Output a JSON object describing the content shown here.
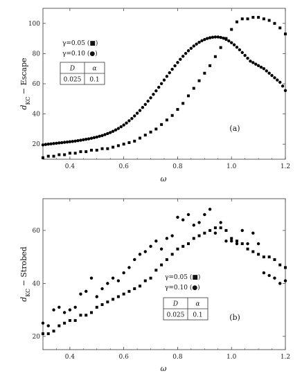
{
  "chart_data": [
    {
      "type": "scatter",
      "panel_label": "(a)",
      "xlabel": "ω",
      "ylabel": "d_KC − Escape",
      "ylabel_main": "d",
      "ylabel_sub": "KC",
      "ylabel_rest": " − Escape",
      "xlim": [
        0.3,
        1.2
      ],
      "ylim": [
        10,
        110
      ],
      "xticks": [
        0.4,
        0.6,
        0.8,
        1.0,
        1.2
      ],
      "xtick_labels": [
        "0.4",
        "0.6",
        "0.8",
        "1.0",
        "1.2"
      ],
      "yticks": [
        20,
        40,
        60,
        80,
        100
      ],
      "ytick_labels": [
        "20",
        "40",
        "60",
        "80",
        "100"
      ],
      "grid": false,
      "legend": [
        {
          "label": "γ=0.05 (■)",
          "marker": "square"
        },
        {
          "label": "γ=0.10 (●)",
          "marker": "circle"
        }
      ],
      "param_table": {
        "headers": [
          "D",
          "α"
        ],
        "values": [
          "0.025",
          "0.1"
        ]
      },
      "series": [
        {
          "marker": "square",
          "x": [
            0.3,
            0.32,
            0.34,
            0.36,
            0.38,
            0.4,
            0.42,
            0.44,
            0.46,
            0.48,
            0.5,
            0.52,
            0.54,
            0.56,
            0.58,
            0.6,
            0.62,
            0.64,
            0.66,
            0.68,
            0.7,
            0.72,
            0.74,
            0.76,
            0.78,
            0.8,
            0.82,
            0.84,
            0.86,
            0.88,
            0.9,
            0.92,
            0.94,
            0.96,
            0.98,
            1.0,
            1.02,
            1.04,
            1.06,
            1.08,
            1.1,
            1.12,
            1.14,
            1.16,
            1.18,
            1.2
          ],
          "y": [
            11,
            12,
            12,
            13,
            13,
            14,
            14,
            15,
            15,
            16,
            16,
            17,
            17,
            18,
            19,
            20,
            21,
            22,
            24,
            26,
            28,
            30,
            33,
            36,
            39,
            43,
            47,
            52,
            57,
            62,
            67,
            72,
            78,
            84,
            90,
            96,
            101,
            103,
            103,
            104,
            104,
            103,
            102,
            100,
            97,
            93
          ]
        },
        {
          "marker": "circle",
          "x": [
            0.3,
            0.31,
            0.32,
            0.33,
            0.34,
            0.35,
            0.36,
            0.37,
            0.38,
            0.39,
            0.4,
            0.41,
            0.42,
            0.43,
            0.44,
            0.45,
            0.46,
            0.47,
            0.48,
            0.49,
            0.5,
            0.51,
            0.52,
            0.53,
            0.54,
            0.55,
            0.56,
            0.57,
            0.58,
            0.59,
            0.6,
            0.61,
            0.62,
            0.63,
            0.64,
            0.65,
            0.66,
            0.67,
            0.68,
            0.69,
            0.7,
            0.71,
            0.72,
            0.73,
            0.74,
            0.75,
            0.76,
            0.77,
            0.78,
            0.79,
            0.8,
            0.81,
            0.82,
            0.83,
            0.84,
            0.85,
            0.86,
            0.87,
            0.88,
            0.89,
            0.9,
            0.91,
            0.92,
            0.93,
            0.94,
            0.95,
            0.96,
            0.97,
            0.98,
            0.99,
            1.0,
            1.01,
            1.02,
            1.03,
            1.04,
            1.05,
            1.06,
            1.07,
            1.08,
            1.09,
            1.1,
            1.11,
            1.12,
            1.13,
            1.14,
            1.15,
            1.16,
            1.17,
            1.18,
            1.19,
            1.2
          ],
          "y": [
            19.5,
            19.8,
            20,
            20.2,
            20.4,
            20.6,
            20.8,
            21,
            21.2,
            21.4,
            21.6,
            21.8,
            22,
            22.3,
            22.6,
            22.9,
            23.2,
            23.5,
            23.9,
            24.3,
            24.7,
            25.2,
            25.7,
            26.3,
            27,
            27.7,
            28.5,
            29.4,
            30.4,
            31.5,
            32.7,
            34,
            35.5,
            37,
            38.7,
            40.5,
            42.3,
            44.3,
            46.3,
            48.5,
            50.7,
            53,
            55.3,
            57.7,
            60.1,
            62.5,
            64.9,
            67.3,
            69.6,
            71.9,
            74.1,
            76.2,
            78.2,
            80.1,
            81.9,
            83.5,
            85,
            86.3,
            87.5,
            88.5,
            89.3,
            90,
            90.5,
            90.8,
            91,
            91,
            90.7,
            90.2,
            89.4,
            88.4,
            87.2,
            85.8,
            84.2,
            82.5,
            80.7,
            78.8,
            76.9,
            75,
            74,
            73,
            72,
            71,
            70,
            68.5,
            67,
            65.5,
            64,
            62.5,
            61,
            58.5,
            55.5
          ]
        }
      ]
    },
    {
      "type": "scatter",
      "panel_label": "(b)",
      "xlabel": "ω",
      "ylabel": "d_KC − Strobed",
      "ylabel_main": "d",
      "ylabel_sub": "KC",
      "ylabel_rest": " − Strobed",
      "xlim": [
        0.3,
        1.2
      ],
      "ylim": [
        15,
        72
      ],
      "xticks": [
        0.4,
        0.6,
        0.8,
        1.0,
        1.2
      ],
      "xtick_labels": [
        "0.4",
        "0.6",
        "0.8",
        "1.0",
        "1.2"
      ],
      "yticks": [
        20,
        40,
        60
      ],
      "ytick_labels": [
        "20",
        "40",
        "60"
      ],
      "grid": false,
      "legend": [
        {
          "label": "γ=0.05 (■)",
          "marker": "square"
        },
        {
          "label": "γ=0.10 (●)",
          "marker": "circle"
        }
      ],
      "param_table": {
        "headers": [
          "D",
          "α"
        ],
        "values": [
          "0.025",
          "0.1"
        ]
      },
      "series": [
        {
          "marker": "square",
          "x": [
            0.3,
            0.32,
            0.34,
            0.36,
            0.38,
            0.4,
            0.42,
            0.44,
            0.46,
            0.48,
            0.5,
            0.52,
            0.54,
            0.56,
            0.58,
            0.6,
            0.62,
            0.64,
            0.66,
            0.68,
            0.7,
            0.72,
            0.74,
            0.76,
            0.78,
            0.8,
            0.82,
            0.84,
            0.86,
            0.88,
            0.9,
            0.92,
            0.94,
            0.96,
            0.98,
            1.0,
            1.02,
            1.04,
            1.06,
            1.08,
            1.1,
            1.12,
            1.14,
            1.16,
            1.18,
            1.2
          ],
          "y": [
            21,
            21,
            22,
            24,
            25,
            26,
            26,
            28,
            28,
            29,
            31,
            32,
            33,
            34,
            35,
            36,
            37,
            38,
            39,
            41,
            42,
            45,
            47,
            49,
            51,
            53,
            54,
            55,
            57,
            58,
            59,
            60,
            61,
            61,
            60,
            57,
            56,
            55,
            53,
            52,
            51,
            50,
            50,
            49,
            47,
            46
          ]
        },
        {
          "marker": "circle",
          "x": [
            0.3,
            0.32,
            0.34,
            0.36,
            0.38,
            0.4,
            0.42,
            0.44,
            0.46,
            0.48,
            0.5,
            0.52,
            0.54,
            0.56,
            0.58,
            0.6,
            0.62,
            0.64,
            0.66,
            0.68,
            0.7,
            0.72,
            0.74,
            0.76,
            0.78,
            0.8,
            0.82,
            0.84,
            0.86,
            0.88,
            0.9,
            0.92,
            0.94,
            0.96,
            0.98,
            1.0,
            1.02,
            1.04,
            1.06,
            1.08,
            1.1,
            1.12,
            1.14,
            1.16,
            1.18,
            1.2
          ],
          "y": [
            25,
            24,
            30,
            31,
            29,
            30,
            31,
            36,
            37,
            42,
            35,
            38,
            40,
            42,
            41,
            44,
            46,
            49,
            51,
            52,
            54,
            56,
            53,
            57,
            58,
            65,
            64,
            66,
            62,
            63,
            66,
            68,
            59,
            63,
            56,
            56,
            55,
            60,
            55,
            59,
            55,
            44,
            43,
            42,
            40,
            41
          ]
        }
      ]
    }
  ]
}
